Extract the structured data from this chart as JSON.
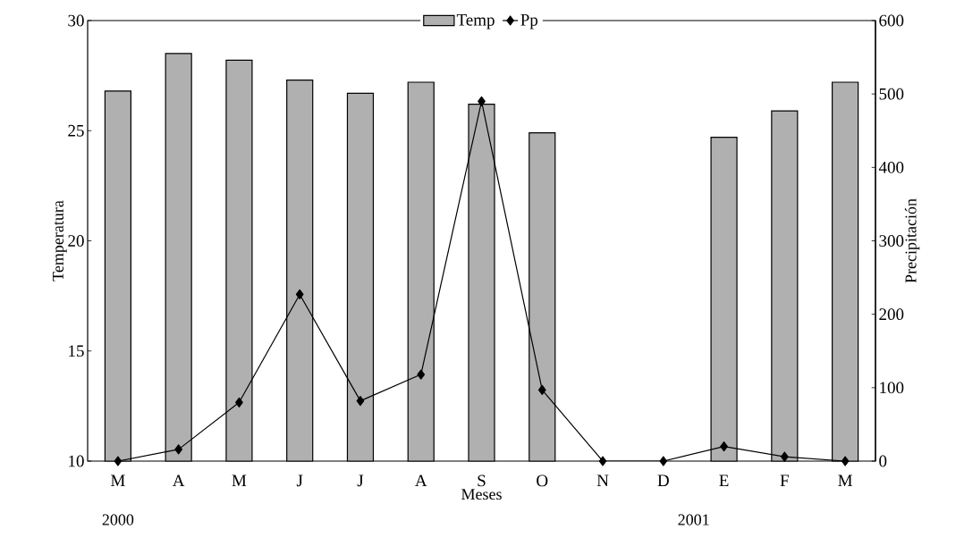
{
  "chart_data": {
    "type": "bar",
    "xlabel": "Meses",
    "ylabel": "Temperatura",
    "y2label": "Precipitación",
    "categories": [
      "M",
      "A",
      "M",
      "J",
      "J",
      "A",
      "S",
      "O",
      "N",
      "D",
      "E",
      "F",
      "M"
    ],
    "series": [
      {
        "name": "Temp",
        "color": "#b0b0b0",
        "values": [
          26.8,
          28.5,
          28.2,
          27.3,
          26.7,
          27.2,
          26.2,
          24.9,
          null,
          null,
          24.7,
          25.9,
          27.2
        ]
      },
      {
        "name": "Pp",
        "type": "line",
        "axis": "y2",
        "color": "#000000",
        "marker": "diamond",
        "values": [
          0,
          16,
          80,
          227,
          82,
          118,
          490,
          97,
          0,
          0,
          20,
          6,
          0
        ]
      }
    ],
    "ylim": [
      10,
      30
    ],
    "yticks": [
      10,
      15,
      20,
      25,
      30
    ],
    "y2lim": [
      0,
      600
    ],
    "y2ticks": [
      0,
      100,
      200,
      300,
      400,
      500,
      600
    ],
    "legend": "top",
    "grid": false,
    "annotations": [
      "2000",
      "2001"
    ]
  }
}
